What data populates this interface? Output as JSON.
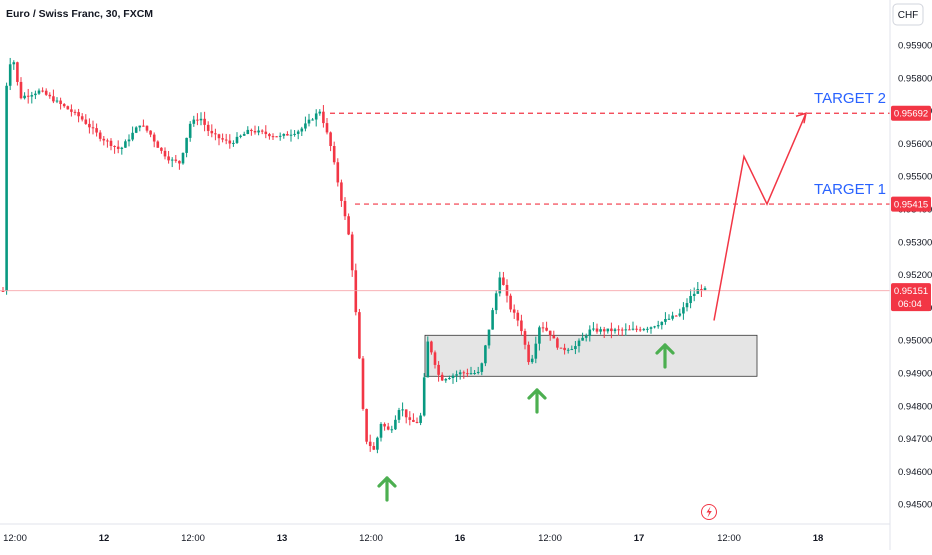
{
  "header": {
    "title": "Euro / Swiss Franc, 30, FXCM",
    "currency_button": "CHF"
  },
  "chart_data": {
    "type": "candlestick",
    "symbol": "Euro / Swiss Franc",
    "interval": "30",
    "source": "FXCM",
    "y_axis": {
      "ticks": [
        "0.95900",
        "0.95800",
        "0.95700",
        "0.95600",
        "0.95500",
        "0.95400",
        "0.95300",
        "0.95200",
        "0.95100",
        "0.95000",
        "0.94900",
        "0.94800",
        "0.94700",
        "0.94600",
        "0.94500"
      ],
      "range": [
        0.9444,
        0.9599
      ]
    },
    "x_axis": {
      "ticks": [
        "12:00",
        "12",
        "12:00",
        "13",
        "12:00",
        "16",
        "12:00",
        "17",
        "12:00",
        "18"
      ]
    },
    "price_labels": [
      {
        "label": "0.95692",
        "value": 0.95692
      },
      {
        "label": "0.95415",
        "value": 0.95415
      },
      {
        "label": "0.95151",
        "value": 0.95151,
        "countdown": "06:04"
      }
    ],
    "annotations": {
      "target_1": {
        "label": "TARGET 1",
        "price": 0.95415
      },
      "target_2": {
        "label": "TARGET 2",
        "price": 0.95692
      },
      "support_zone": {
        "top": 0.95015,
        "bottom": 0.9489
      },
      "forecast_path": [
        0.9506,
        0.9556,
        0.95415,
        0.95692
      ],
      "buy_signals": 3
    },
    "current_price": 0.95151,
    "colors": {
      "up": "#089981",
      "down": "#f23645",
      "target_line": "#f23645",
      "target_text": "#2962ff",
      "arrow": "#4caf50",
      "zone": "#e0e0e0",
      "forecast": "#f23645"
    },
    "key_closes": [
      0.9573,
      0.9588,
      0.9574,
      0.9576,
      0.9572,
      0.9568,
      0.9562,
      0.9558,
      0.9566,
      0.9563,
      0.9558,
      0.9555,
      0.9554,
      0.9566,
      0.9568,
      0.9563,
      0.956,
      0.9564,
      0.9562,
      0.9566,
      0.957,
      0.956,
      0.9545,
      0.953,
      0.95,
      0.947,
      0.9466,
      0.9475,
      0.9472,
      0.948,
      0.95,
      0.9488,
      0.949,
      0.95,
      0.952,
      0.951,
      0.9492,
      0.9505,
      0.9497,
      0.9498,
      0.9503,
      0.9503,
      0.9504,
      0.9506,
      0.9513,
      0.9516,
      0.9515
    ]
  }
}
